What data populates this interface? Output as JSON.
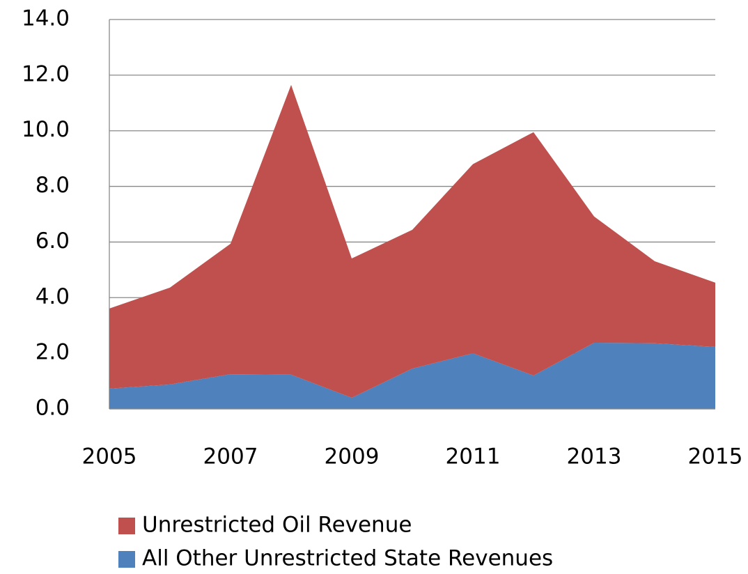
{
  "chart_data": {
    "type": "area",
    "stacked": true,
    "x": [
      2005,
      2006,
      2007,
      2008,
      2009,
      2010,
      2011,
      2012,
      2013,
      2014,
      2015
    ],
    "series": [
      {
        "name": "Unrestricted Oil Revenue",
        "color": "#c0504d",
        "values": [
          2.88,
          3.48,
          4.69,
          10.42,
          5.01,
          4.99,
          6.8,
          8.75,
          4.54,
          2.95,
          2.31
        ]
      },
      {
        "name": "All Other Unrestricted State Revenues",
        "color": "#4f81bd",
        "values": [
          0.73,
          0.88,
          1.25,
          1.23,
          0.4,
          1.45,
          2.0,
          1.2,
          2.38,
          2.36,
          2.23
        ]
      }
    ],
    "xlim": [
      2005,
      2015
    ],
    "xticks": [
      2005,
      2007,
      2009,
      2011,
      2013,
      2015
    ],
    "ylim": [
      0,
      14
    ],
    "yticks": [
      {
        "value": 0,
        "label": "0.0"
      },
      {
        "value": 2,
        "label": "2.0"
      },
      {
        "value": 4,
        "label": "4.0"
      },
      {
        "value": 6,
        "label": "6.0"
      },
      {
        "value": 8,
        "label": "8.0"
      },
      {
        "value": 10,
        "label": "10.0"
      },
      {
        "value": 12,
        "label": "12.0"
      },
      {
        "value": 14,
        "label": "14.0"
      }
    ],
    "grid": true
  }
}
